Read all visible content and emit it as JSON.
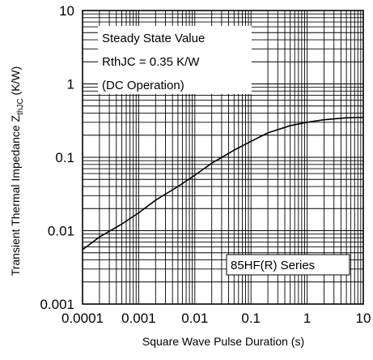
{
  "chart_data": {
    "type": "line",
    "xlabel": "Square Wave Pulse Duration (s)",
    "ylabel_main": "Transient Thermal Impedance Z",
    "ylabel_sub": "thJC",
    "ylabel_unit": " (K/W)",
    "x_scale": "log",
    "y_scale": "log",
    "xlim": [
      0.0001,
      10
    ],
    "ylim": [
      0.001,
      10
    ],
    "x_ticks": [
      "0.0001",
      "0.001",
      "0.01",
      "0.1",
      "1",
      "10"
    ],
    "y_ticks": [
      "0.001",
      "0.01",
      "0.1",
      "1",
      "10"
    ],
    "grid": true,
    "annotations": {
      "steady_state_title": "Steady State Value",
      "rthjc": "RthJC = 0.35 K/W",
      "dc_operation": "(DC Operation)",
      "series_label": "85HF(R) Series"
    },
    "series": [
      {
        "x": [
          0.0001,
          0.0002,
          0.0005,
          0.001,
          0.002,
          0.005,
          0.01,
          0.02,
          0.05,
          0.1,
          0.2,
          0.5,
          1,
          2,
          5,
          10
        ],
        "y": [
          0.0055,
          0.0082,
          0.0123,
          0.0175,
          0.026,
          0.04,
          0.057,
          0.083,
          0.125,
          0.165,
          0.215,
          0.27,
          0.3,
          0.325,
          0.345,
          0.35
        ]
      }
    ]
  }
}
